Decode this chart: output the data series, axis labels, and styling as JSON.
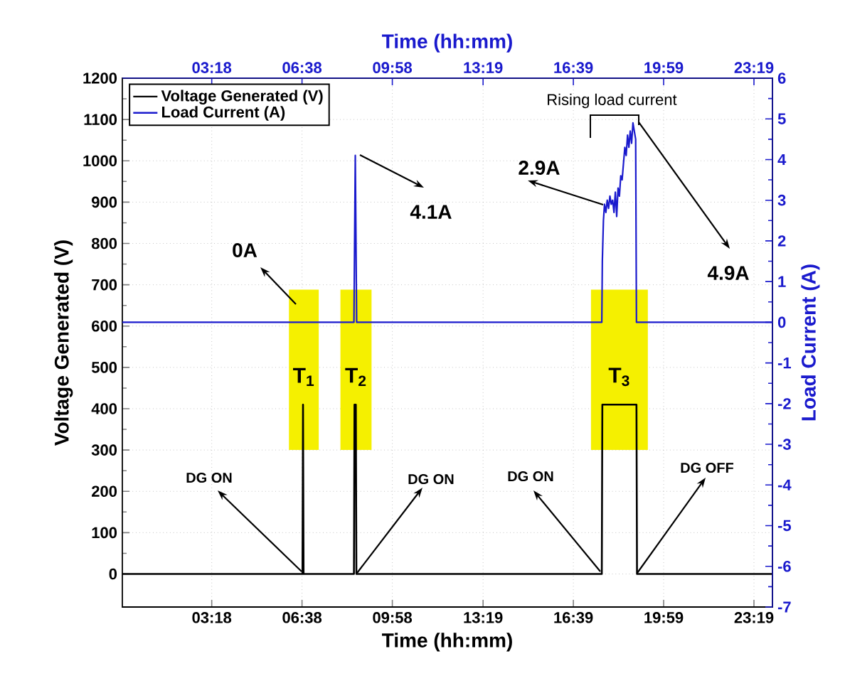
{
  "chart_data": {
    "type": "line",
    "xlabel": "Time (hh:mm)",
    "x2label": "Time (hh:mm)",
    "ylabel": "Voltage Generated (V)",
    "y2label": "Load Current (A)",
    "xlim": [
      0,
      24
    ],
    "x2lim": [
      0,
      24
    ],
    "xticks": [
      {
        "value": 3.3,
        "label": "03:18"
      },
      {
        "value": 6.633,
        "label": "06:38"
      },
      {
        "value": 9.967,
        "label": "09:58"
      },
      {
        "value": 13.317,
        "label": "13:19"
      },
      {
        "value": 16.65,
        "label": "16:39"
      },
      {
        "value": 19.983,
        "label": "19:59"
      },
      {
        "value": 23.317,
        "label": "23:19"
      }
    ],
    "x2ticks": [
      {
        "value": 3.3,
        "label": "03:18"
      },
      {
        "value": 6.633,
        "label": "06:38"
      },
      {
        "value": 9.967,
        "label": "09:58"
      },
      {
        "value": 13.317,
        "label": "13:19"
      },
      {
        "value": 16.65,
        "label": "16:39"
      },
      {
        "value": 19.983,
        "label": "19:59"
      },
      {
        "value": 23.317,
        "label": "23:19"
      }
    ],
    "ylim": [
      -80,
      1200
    ],
    "yticks": [
      0,
      100,
      200,
      300,
      400,
      500,
      600,
      700,
      800,
      900,
      1000,
      1100,
      1200
    ],
    "y2lim": [
      -7,
      6
    ],
    "y2ticks": [
      -7,
      -6,
      -5,
      -4,
      -3,
      -2,
      -1,
      0,
      1,
      2,
      3,
      4,
      5,
      6
    ],
    "grid": true,
    "legend": "top left",
    "marker": "none",
    "line_style": "solid",
    "series": [
      {
        "name": "Voltage Generated (V)",
        "color": "#000000",
        "x": [
          0,
          6.65,
          6.67,
          6.69,
          8.55,
          8.57,
          8.62,
          8.64,
          17.7,
          17.72,
          18.98,
          19.0,
          24
        ],
        "values": [
          0,
          0,
          410,
          0,
          0,
          410,
          410,
          0,
          0,
          410,
          410,
          0,
          0
        ]
      },
      {
        "name": "Load Current (A)",
        "color": "#1a1acd",
        "axis": "y2",
        "x": [
          0,
          8.55,
          8.6,
          8.65,
          17.7,
          17.72,
          17.76,
          17.8,
          17.85,
          17.9,
          17.95,
          18.0,
          18.05,
          18.1,
          18.15,
          18.2,
          18.25,
          18.3,
          18.35,
          18.4,
          18.45,
          18.5,
          18.55,
          18.6,
          18.65,
          18.7,
          18.75,
          18.8,
          18.85,
          18.9,
          18.95,
          18.98,
          24
        ],
        "values": [
          0,
          0,
          4.1,
          0,
          0,
          1.5,
          2.5,
          2.9,
          2.7,
          3.0,
          2.8,
          3.1,
          2.9,
          3.0,
          2.7,
          3.2,
          2.6,
          3.3,
          3.1,
          3.6,
          3.5,
          3.9,
          4.3,
          4.1,
          4.6,
          4.3,
          4.7,
          4.4,
          4.9,
          4.7,
          4.5,
          0,
          0
        ]
      }
    ],
    "bands": [
      {
        "axis": "x",
        "from": 6.15,
        "to": 7.25,
        "label": "T$_{1}$",
        "color": "#f5f000"
      },
      {
        "axis": "x",
        "from": 8.05,
        "to": 9.2,
        "label": "T$_{2}$",
        "color": "#f5f000"
      },
      {
        "axis": "x",
        "from": 17.3,
        "to": 19.4,
        "label": "T$_{3}$",
        "color": "#f5f000"
      }
    ],
    "annotations": [
      "Rising load current",
      "4.9A",
      "2.9A",
      "4.1A",
      "0A",
      "DG ON",
      "DG ON",
      "DG ON",
      "DG OFF"
    ]
  }
}
